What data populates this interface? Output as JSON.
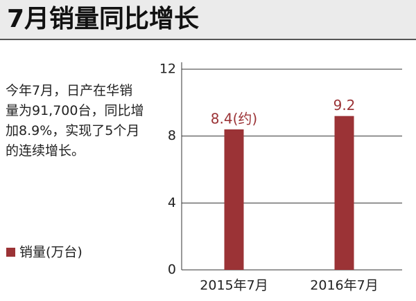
{
  "chart_data": {
    "type": "bar",
    "title": "7月销量同比增长",
    "annotation": "今年7月，日产在华销量为91,700台，同比增加8.9%，实现了5个月的连续增长。",
    "categories": [
      "2015年7月",
      "2016年7月"
    ],
    "series": [
      {
        "name": "销量(万台)",
        "color": "#9b3336",
        "values": [
          8.4,
          9.2
        ],
        "value_labels": [
          "8.4(约)",
          "9.2"
        ]
      }
    ],
    "ylim": [
      0,
      12
    ],
    "yticks": [
      0,
      4,
      8,
      12
    ],
    "grid": true
  }
}
